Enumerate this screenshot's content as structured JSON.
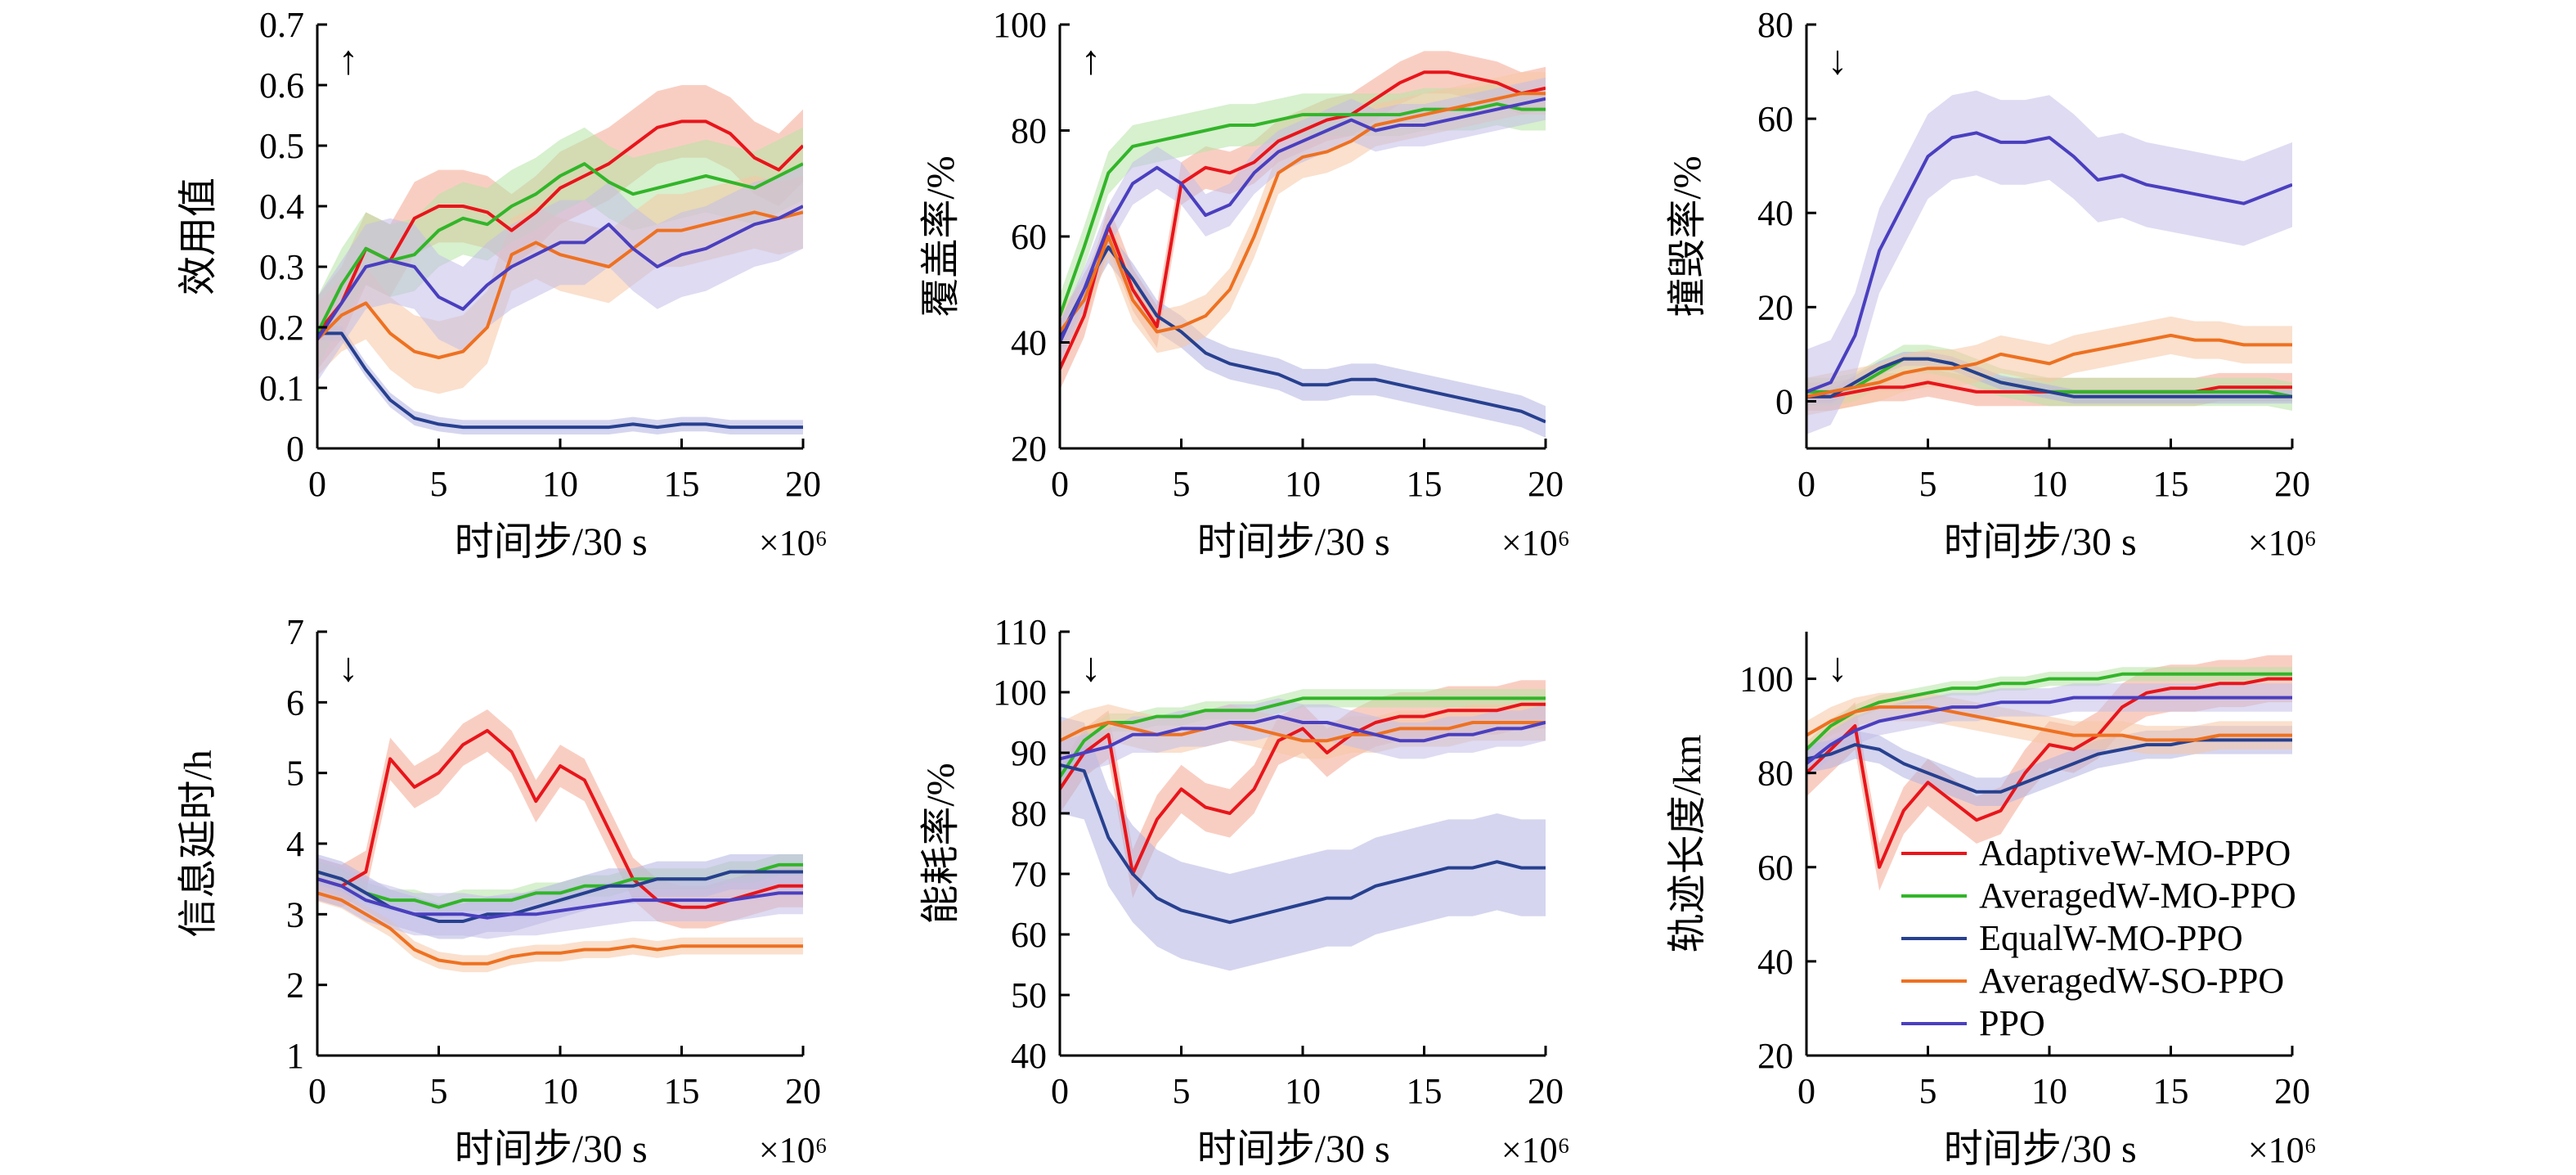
{
  "colors": {
    "AdaptiveW-MO-PPO": "#e8151b",
    "AveragedW-MO-PPO": "#32b529",
    "EqualW-MO-PPO": "#27408f",
    "AveragedW-SO-PPO": "#ee7121",
    "PPO": "#4a3fbf"
  },
  "band_colors": {
    "AdaptiveW-MO-PPO": "#f4a58f",
    "AveragedW-MO-PPO": "#b7e3a6",
    "EqualW-MO-PPO": "#b3b3e2",
    "AveragedW-SO-PPO": "#f6c7a4",
    "PPO": "#c2bde8"
  },
  "legend": [
    "AdaptiveW-MO-PPO",
    "AveragedW-MO-PPO",
    "EqualW-MO-PPO",
    "AveragedW-SO-PPO",
    "PPO"
  ],
  "chart_data": [
    {
      "type": "line",
      "ylabel": "效用值",
      "xlabel": "时间步/30 s",
      "x_exponent": "×10⁶",
      "arrow": "↑",
      "xlim": [
        0,
        20
      ],
      "ylim": [
        0,
        0.7
      ],
      "xticks": [
        "0",
        "5",
        "10",
        "15",
        "20"
      ],
      "yticks": [
        "0",
        "0.1",
        "0.2",
        "0.3",
        "0.4",
        "0.5",
        "0.6",
        "0.7"
      ],
      "x": [
        0,
        1,
        2,
        3,
        4,
        5,
        6,
        7,
        8,
        9,
        10,
        11,
        12,
        13,
        14,
        15,
        16,
        17,
        18,
        19,
        20
      ],
      "series": [
        {
          "name": "AdaptiveW-MO-PPO",
          "values": [
            0.19,
            0.24,
            0.33,
            0.31,
            0.38,
            0.4,
            0.4,
            0.39,
            0.36,
            0.39,
            0.43,
            0.45,
            0.47,
            0.5,
            0.53,
            0.54,
            0.54,
            0.52,
            0.48,
            0.46,
            0.5
          ],
          "band": 0.06
        },
        {
          "name": "AveragedW-MO-PPO",
          "values": [
            0.19,
            0.27,
            0.33,
            0.31,
            0.32,
            0.36,
            0.38,
            0.37,
            0.4,
            0.42,
            0.45,
            0.47,
            0.44,
            0.42,
            0.43,
            0.44,
            0.45,
            0.44,
            0.43,
            0.45,
            0.47
          ],
          "band": 0.06
        },
        {
          "name": "EqualW-MO-PPO",
          "values": [
            0.19,
            0.19,
            0.13,
            0.08,
            0.05,
            0.04,
            0.035,
            0.035,
            0.035,
            0.035,
            0.035,
            0.035,
            0.035,
            0.04,
            0.035,
            0.04,
            0.04,
            0.035,
            0.035,
            0.035,
            0.035
          ],
          "band": 0.012
        },
        {
          "name": "AveragedW-SO-PPO",
          "values": [
            0.18,
            0.22,
            0.24,
            0.19,
            0.16,
            0.15,
            0.16,
            0.2,
            0.32,
            0.34,
            0.32,
            0.31,
            0.3,
            0.33,
            0.36,
            0.36,
            0.37,
            0.38,
            0.39,
            0.38,
            0.39
          ],
          "band": 0.06
        },
        {
          "name": "PPO",
          "values": [
            0.18,
            0.24,
            0.3,
            0.31,
            0.3,
            0.25,
            0.23,
            0.27,
            0.3,
            0.32,
            0.34,
            0.34,
            0.37,
            0.33,
            0.3,
            0.32,
            0.33,
            0.35,
            0.37,
            0.38,
            0.4
          ],
          "band": 0.07
        }
      ]
    },
    {
      "type": "line",
      "ylabel": "覆盖率/%",
      "xlabel": "时间步/30 s",
      "x_exponent": "×10⁶",
      "arrow": "↑",
      "xlim": [
        0,
        20
      ],
      "ylim": [
        20,
        100
      ],
      "xticks": [
        "0",
        "5",
        "10",
        "15",
        "20"
      ],
      "yticks": [
        "20",
        "40",
        "60",
        "80",
        "100"
      ],
      "x": [
        0,
        1,
        2,
        3,
        4,
        5,
        6,
        7,
        8,
        9,
        10,
        11,
        12,
        13,
        14,
        15,
        16,
        17,
        18,
        19,
        20
      ],
      "series": [
        {
          "name": "AdaptiveW-MO-PPO",
          "values": [
            35,
            45,
            62,
            50,
            43,
            70,
            73,
            72,
            74,
            78,
            80,
            82,
            83,
            86,
            89,
            91,
            91,
            90,
            89,
            87,
            88
          ],
          "band": 4
        },
        {
          "name": "AveragedW-MO-PPO",
          "values": [
            45,
            58,
            72,
            77,
            78,
            79,
            80,
            81,
            81,
            82,
            83,
            83,
            83,
            83,
            83,
            84,
            84,
            84,
            85,
            84,
            84
          ],
          "band": 4
        },
        {
          "name": "EqualW-MO-PPO",
          "values": [
            41,
            50,
            58,
            52,
            45,
            42,
            38,
            36,
            35,
            34,
            32,
            32,
            33,
            33,
            32,
            31,
            30,
            29,
            28,
            27,
            25
          ],
          "band": 3
        },
        {
          "name": "AveragedW-SO-PPO",
          "values": [
            42,
            48,
            60,
            48,
            42,
            43,
            45,
            50,
            60,
            72,
            75,
            76,
            78,
            81,
            82,
            83,
            84,
            85,
            86,
            87,
            87
          ],
          "band": 4
        },
        {
          "name": "PPO",
          "values": [
            40,
            50,
            62,
            70,
            73,
            70,
            64,
            66,
            72,
            76,
            78,
            80,
            82,
            80,
            81,
            81,
            82,
            83,
            84,
            85,
            86
          ],
          "band": 4
        }
      ]
    },
    {
      "type": "line",
      "ylabel": "撞毁率/%",
      "xlabel": "时间步/30 s",
      "x_exponent": "×10⁶",
      "arrow": "↓",
      "xlim": [
        0,
        20
      ],
      "ylim": [
        -10,
        80
      ],
      "xticks": [
        "0",
        "5",
        "10",
        "15",
        "20"
      ],
      "yticks": [
        "0",
        "20",
        "40",
        "60",
        "80"
      ],
      "x": [
        0,
        1,
        2,
        3,
        4,
        5,
        6,
        7,
        8,
        9,
        10,
        11,
        12,
        13,
        14,
        15,
        16,
        17,
        18,
        19,
        20
      ],
      "series": [
        {
          "name": "AdaptiveW-MO-PPO",
          "values": [
            1,
            1,
            2,
            3,
            3,
            4,
            3,
            2,
            2,
            2,
            2,
            2,
            2,
            2,
            2,
            2,
            2,
            3,
            3,
            3,
            3
          ],
          "band": 3
        },
        {
          "name": "AveragedW-MO-PPO",
          "values": [
            2,
            2,
            3,
            6,
            9,
            9,
            8,
            6,
            4,
            3,
            2,
            2,
            2,
            2,
            2,
            2,
            2,
            2,
            2,
            2,
            1
          ],
          "band": 3
        },
        {
          "name": "EqualW-MO-PPO",
          "values": [
            1,
            1,
            4,
            7,
            9,
            9,
            8,
            6,
            4,
            3,
            2,
            1,
            1,
            1,
            1,
            1,
            1,
            1,
            1,
            1,
            1
          ],
          "band": 1.5
        },
        {
          "name": "AveragedW-SO-PPO",
          "values": [
            1,
            2,
            3,
            4,
            6,
            7,
            7,
            8,
            10,
            9,
            8,
            10,
            11,
            12,
            13,
            14,
            13,
            13,
            12,
            12,
            12
          ],
          "band": 4
        },
        {
          "name": "PPO",
          "values": [
            2,
            4,
            14,
            32,
            42,
            52,
            56,
            57,
            55,
            55,
            56,
            52,
            47,
            48,
            46,
            45,
            44,
            43,
            42,
            44,
            46
          ],
          "band": 9
        }
      ]
    },
    {
      "type": "line",
      "ylabel": "信息延时/h",
      "xlabel": "时间步/30 s",
      "x_exponent": "×10⁶",
      "arrow": "↓",
      "xlim": [
        0,
        20
      ],
      "ylim": [
        1,
        7
      ],
      "xticks": [
        "0",
        "5",
        "10",
        "15",
        "20"
      ],
      "yticks": [
        "1",
        "2",
        "3",
        "4",
        "5",
        "6",
        "7"
      ],
      "x": [
        0,
        1,
        2,
        3,
        4,
        5,
        6,
        7,
        8,
        9,
        10,
        11,
        12,
        13,
        14,
        15,
        16,
        17,
        18,
        19,
        20
      ],
      "series": [
        {
          "name": "AdaptiveW-MO-PPO",
          "values": [
            3.5,
            3.4,
            3.6,
            5.2,
            4.8,
            5.0,
            5.4,
            5.6,
            5.3,
            4.6,
            5.1,
            4.9,
            4.2,
            3.5,
            3.2,
            3.1,
            3.1,
            3.2,
            3.3,
            3.4,
            3.4
          ],
          "band": 0.3
        },
        {
          "name": "AveragedW-MO-PPO",
          "values": [
            3.6,
            3.5,
            3.3,
            3.2,
            3.2,
            3.1,
            3.2,
            3.2,
            3.2,
            3.3,
            3.3,
            3.4,
            3.4,
            3.5,
            3.5,
            3.5,
            3.5,
            3.6,
            3.6,
            3.7,
            3.7
          ],
          "band": 0.15
        },
        {
          "name": "EqualW-MO-PPO",
          "values": [
            3.6,
            3.5,
            3.3,
            3.1,
            3.0,
            2.9,
            2.9,
            3.0,
            3.0,
            3.1,
            3.2,
            3.3,
            3.4,
            3.4,
            3.5,
            3.5,
            3.5,
            3.6,
            3.6,
            3.6,
            3.6
          ],
          "band": 0.25
        },
        {
          "name": "AveragedW-SO-PPO",
          "values": [
            3.3,
            3.2,
            3.0,
            2.8,
            2.5,
            2.35,
            2.3,
            2.3,
            2.4,
            2.45,
            2.45,
            2.5,
            2.5,
            2.55,
            2.5,
            2.55,
            2.55,
            2.55,
            2.55,
            2.55,
            2.55
          ],
          "band": 0.12
        },
        {
          "name": "PPO",
          "values": [
            3.5,
            3.4,
            3.2,
            3.1,
            3.0,
            3.0,
            3.0,
            2.95,
            3.0,
            3.0,
            3.05,
            3.1,
            3.15,
            3.2,
            3.2,
            3.2,
            3.2,
            3.2,
            3.25,
            3.3,
            3.3
          ],
          "band": 0.3
        }
      ]
    },
    {
      "type": "line",
      "ylabel": "能耗率/%",
      "xlabel": "时间步/30 s",
      "x_exponent": "×10⁶",
      "arrow": "↓",
      "xlim": [
        0,
        20
      ],
      "ylim": [
        40,
        110
      ],
      "xticks": [
        "0",
        "5",
        "10",
        "15",
        "20"
      ],
      "yticks": [
        "40",
        "50",
        "60",
        "70",
        "80",
        "90",
        "100",
        "110"
      ],
      "x": [
        0,
        1,
        2,
        3,
        4,
        5,
        6,
        7,
        8,
        9,
        10,
        11,
        12,
        13,
        14,
        15,
        16,
        17,
        18,
        19,
        20
      ],
      "series": [
        {
          "name": "AdaptiveW-MO-PPO",
          "values": [
            84,
            90,
            93,
            70,
            79,
            84,
            81,
            80,
            84,
            92,
            94,
            90,
            93,
            95,
            96,
            96,
            97,
            97,
            97,
            98,
            98
          ],
          "band": 4
        },
        {
          "name": "AveragedW-MO-PPO",
          "values": [
            86,
            92,
            95,
            95,
            96,
            96,
            97,
            97,
            97,
            98,
            99,
            99,
            99,
            99,
            99,
            99,
            99,
            99,
            99,
            99,
            99
          ],
          "band": 1.5
        },
        {
          "name": "EqualW-MO-PPO",
          "values": [
            88,
            87,
            76,
            70,
            66,
            64,
            63,
            62,
            63,
            64,
            65,
            66,
            66,
            68,
            69,
            70,
            71,
            71,
            72,
            71,
            71
          ],
          "band": 8
        },
        {
          "name": "AveragedW-SO-PPO",
          "values": [
            92,
            94,
            95,
            94,
            93,
            93,
            94,
            95,
            94,
            93,
            92,
            92,
            93,
            93,
            94,
            94,
            94,
            95,
            95,
            95,
            95
          ],
          "band": 3
        },
        {
          "name": "PPO",
          "values": [
            89,
            90,
            91,
            93,
            93,
            94,
            94,
            95,
            95,
            96,
            95,
            95,
            94,
            93,
            92,
            92,
            93,
            93,
            94,
            94,
            95
          ],
          "band": 3
        }
      ]
    },
    {
      "type": "line",
      "ylabel": "轨迹长度/km",
      "xlabel": "时间步/30 s",
      "x_exponent": "×10⁶",
      "arrow": "↓",
      "xlim": [
        0,
        20
      ],
      "ylim": [
        20,
        110
      ],
      "xticks": [
        "0",
        "5",
        "10",
        "15",
        "20"
      ],
      "yticks": [
        "20",
        "40",
        "60",
        "80",
        "100"
      ],
      "x": [
        0,
        1,
        2,
        3,
        4,
        5,
        6,
        7,
        8,
        9,
        10,
        11,
        12,
        13,
        14,
        15,
        16,
        17,
        18,
        19,
        20
      ],
      "series": [
        {
          "name": "AdaptiveW-MO-PPO",
          "values": [
            80,
            85,
            90,
            60,
            72,
            78,
            74,
            70,
            72,
            80,
            86,
            85,
            88,
            94,
            97,
            98,
            98,
            99,
            99,
            100,
            100
          ],
          "band": 5
        },
        {
          "name": "AveragedW-MO-PPO",
          "values": [
            85,
            90,
            93,
            95,
            96,
            97,
            98,
            98,
            99,
            99,
            100,
            100,
            100,
            101,
            101,
            101,
            101,
            101,
            101,
            101,
            101
          ],
          "band": 1.5
        },
        {
          "name": "EqualW-MO-PPO",
          "values": [
            83,
            84,
            86,
            85,
            82,
            80,
            78,
            76,
            76,
            78,
            80,
            82,
            84,
            85,
            86,
            86,
            87,
            87,
            87,
            87,
            87
          ],
          "band": 3
        },
        {
          "name": "AveragedW-SO-PPO",
          "values": [
            88,
            91,
            93,
            94,
            94,
            94,
            93,
            92,
            91,
            90,
            89,
            88,
            88,
            88,
            87,
            87,
            87,
            88,
            88,
            88,
            88
          ],
          "band": 3
        },
        {
          "name": "PPO",
          "values": [
            82,
            86,
            89,
            91,
            92,
            93,
            94,
            94,
            95,
            95,
            95,
            96,
            96,
            96,
            96,
            96,
            96,
            96,
            96,
            96,
            96
          ],
          "band": 3
        }
      ]
    }
  ]
}
